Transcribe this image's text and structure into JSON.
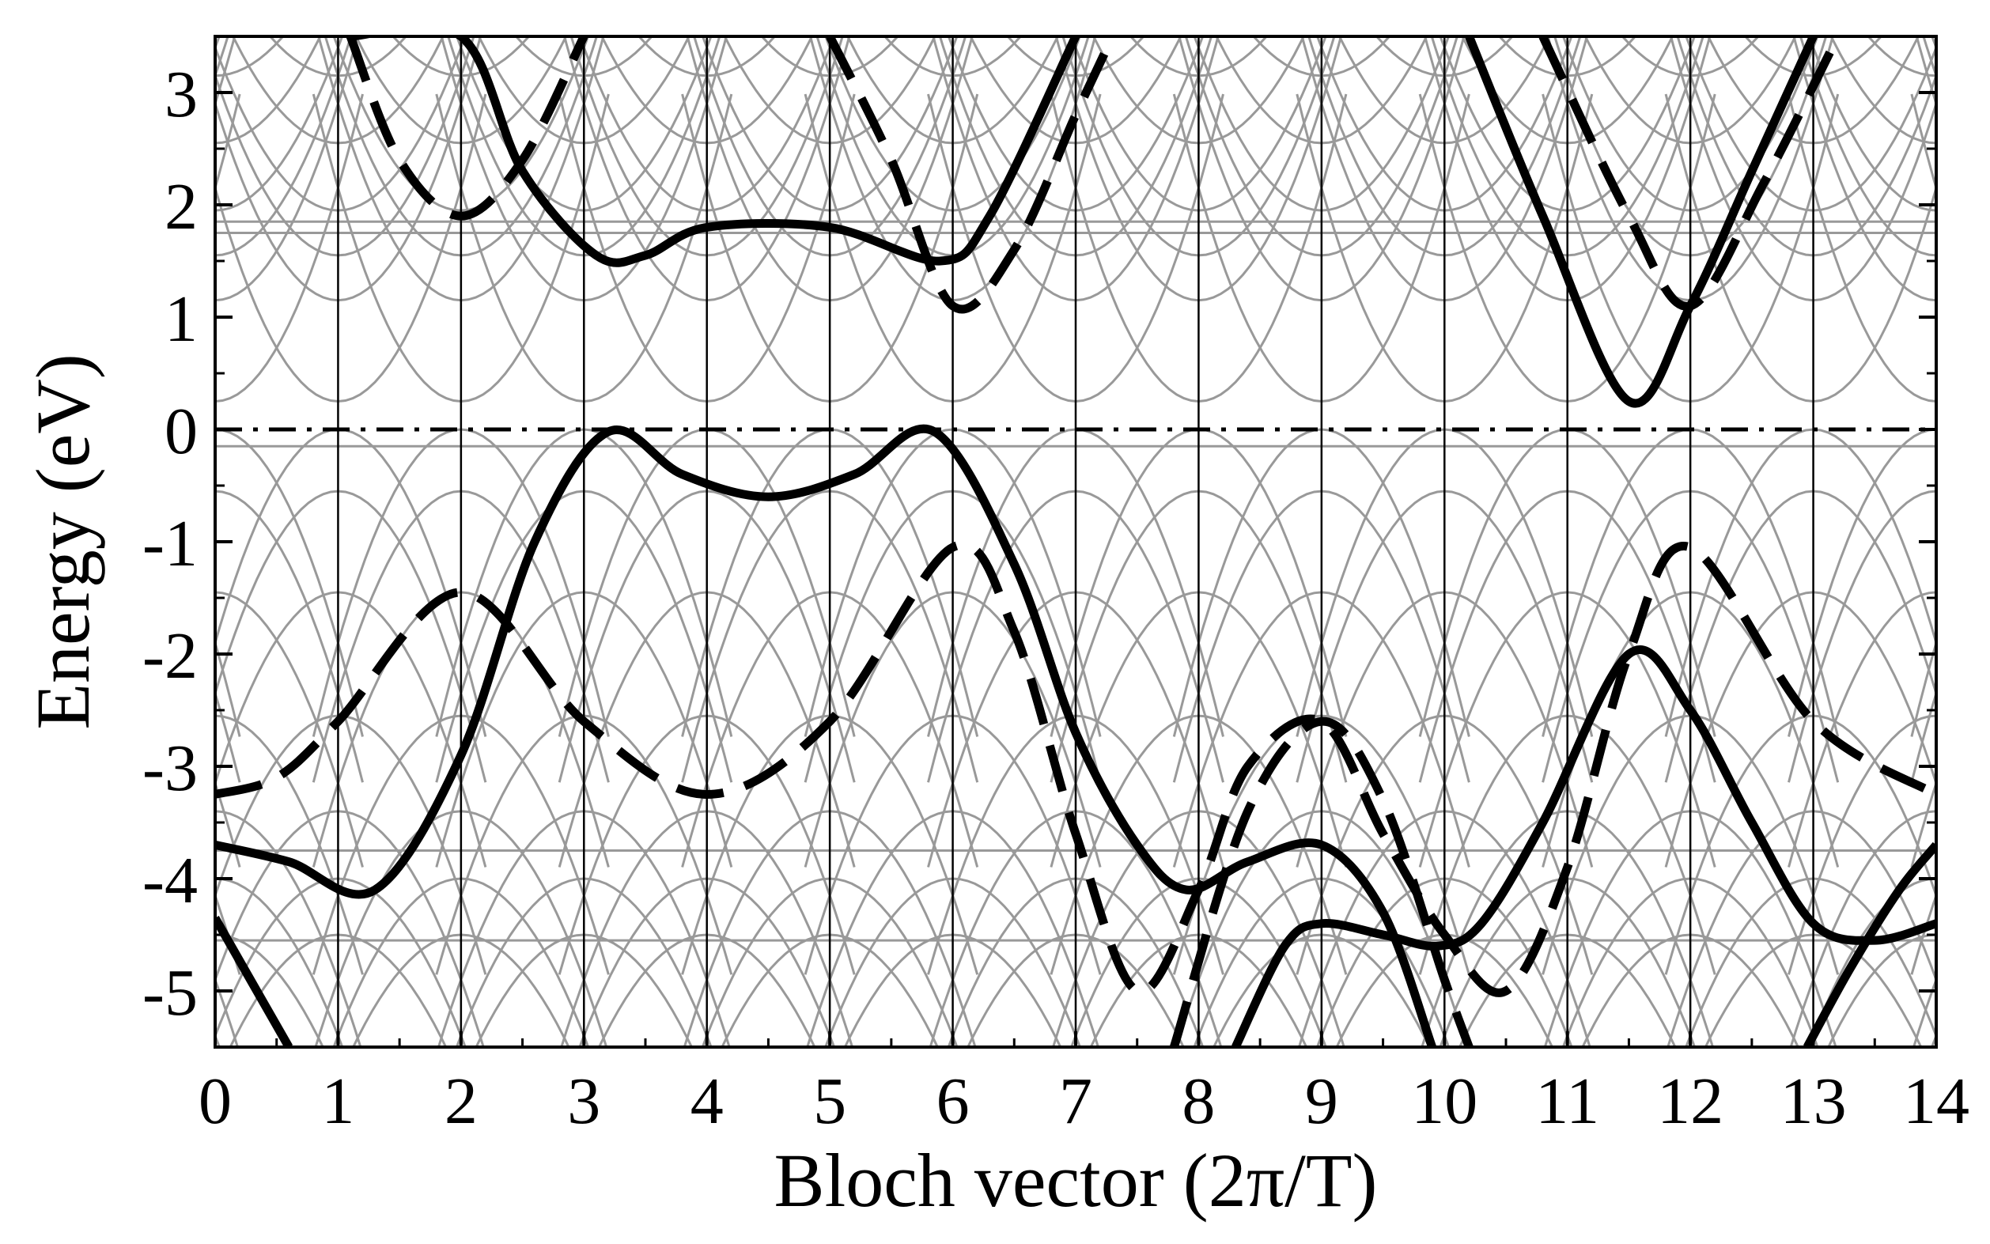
{
  "chart_data": {
    "type": "line",
    "xlabel": "Bloch vector (2π/T)",
    "ylabel": "Energy (eV)",
    "xlim": [
      0,
      14
    ],
    "ylim": [
      -5.5,
      3.5
    ],
    "xticks": [
      "0",
      "1",
      "2",
      "3",
      "4",
      "5",
      "6",
      "7",
      "8",
      "9",
      "10",
      "11",
      "12",
      "13",
      "14"
    ],
    "yticks": [
      "3",
      "2",
      "1",
      "0",
      "-1",
      "-2",
      "-3",
      "-4",
      "-5"
    ],
    "grid": "vertical lines at every integer x",
    "reference_line": {
      "y": 0,
      "style": "dash-dot"
    },
    "colors": {
      "bands": "#000000",
      "background_bands": "#999999"
    },
    "series": [
      {
        "style": "solid",
        "x": [
          0,
          0.6
        ],
        "y": [
          -4.35,
          -5.5
        ]
      },
      {
        "style": "solid",
        "x": [
          0,
          0.6,
          1.3,
          2.0,
          2.6,
          3.2,
          3.8,
          4.5,
          5.2,
          5.85,
          6.5,
          7.0,
          7.5,
          7.9,
          8.4,
          9.0,
          9.5,
          9.9
        ],
        "y": [
          -3.7,
          -3.85,
          -4.1,
          -2.9,
          -1.0,
          -0.02,
          -0.4,
          -0.6,
          -0.4,
          -0.02,
          -1.2,
          -2.7,
          -3.7,
          -4.1,
          -3.85,
          -3.7,
          -4.3,
          -5.5
        ]
      },
      {
        "style": "solid",
        "x": [
          8.3,
          8.7,
          9.0,
          9.5,
          9.95,
          10.3,
          10.8,
          11.5,
          12.0,
          12.5,
          13.0,
          13.5,
          14.0
        ],
        "y": [
          -5.5,
          -4.6,
          -4.4,
          -4.5,
          -4.6,
          -4.4,
          -3.5,
          -2.0,
          -2.5,
          -3.5,
          -4.4,
          -4.55,
          -4.4
        ]
      },
      {
        "style": "solid",
        "x": [
          12.95,
          13.3,
          13.7,
          14.0
        ],
        "y": [
          -5.5,
          -4.8,
          -4.1,
          -3.7
        ]
      },
      {
        "style": "dashed",
        "x": [
          0,
          0.5,
          1.0,
          2.0,
          3.0,
          4.0,
          5.0,
          6.0,
          6.5,
          7.0,
          7.5,
          8.0,
          8.4,
          9.0,
          9.5,
          10.0,
          10.5,
          11.0,
          11.5,
          12.0,
          13.0,
          14.0
        ],
        "y": [
          -3.25,
          -3.1,
          -2.6,
          -1.45,
          -2.6,
          -3.25,
          -2.6,
          -1.05,
          -1.8,
          -3.6,
          -5.0,
          -4.1,
          -3.0,
          -2.6,
          -3.6,
          -4.5,
          -5.0,
          -3.9,
          -2.0,
          -1.05,
          -2.6,
          -3.25
        ]
      },
      {
        "style": "dashed",
        "x": [
          7.8,
          8.4,
          9.0,
          9.5,
          10.0,
          10.2
        ],
        "y": [
          -5.5,
          -3.4,
          -2.6,
          -3.3,
          -4.9,
          -5.5
        ]
      },
      {
        "style": "solid",
        "x": [
          1.1,
          2.0,
          2.5,
          3.1,
          3.5,
          4.0,
          5.0,
          5.9,
          6.3,
          7.0
        ],
        "y": [
          3.5,
          3.5,
          2.3,
          1.55,
          1.55,
          1.8,
          1.8,
          1.5,
          1.9,
          3.5
        ]
      },
      {
        "style": "dashed",
        "x": [
          1.1,
          1.5,
          2.0,
          2.5,
          3.0
        ],
        "y": [
          3.5,
          2.4,
          1.9,
          2.4,
          3.5
        ]
      },
      {
        "style": "dashed",
        "x": [
          5.0,
          5.5,
          6.0,
          6.5,
          7.0,
          7.3
        ],
        "y": [
          3.5,
          2.4,
          1.1,
          1.6,
          2.8,
          3.5
        ]
      },
      {
        "style": "solid",
        "x": [
          10.2,
          10.8,
          11.5,
          12.0,
          12.5,
          13.0
        ],
        "y": [
          3.5,
          1.9,
          0.25,
          1.1,
          2.3,
          3.5
        ]
      },
      {
        "style": "dashed",
        "x": [
          10.8,
          11.5,
          12.0,
          12.6,
          13.2
        ],
        "y": [
          3.5,
          1.9,
          1.1,
          2.2,
          3.5
        ]
      }
    ]
  }
}
